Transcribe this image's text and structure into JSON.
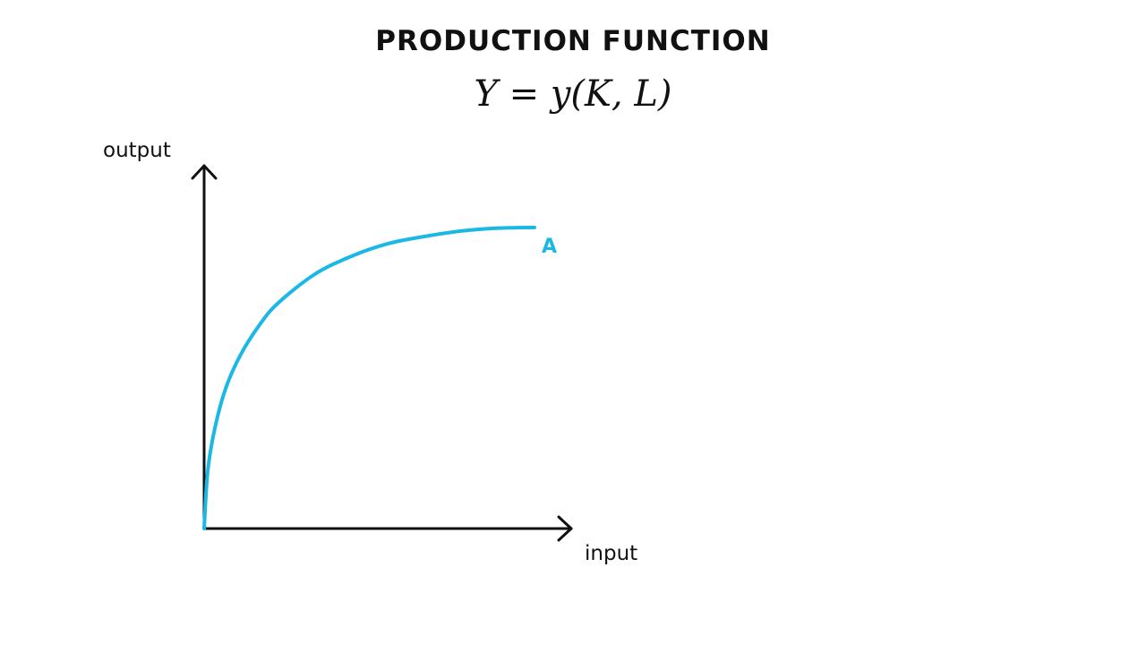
{
  "header": {
    "title": "PRODUCTION FUNCTION",
    "equation": "Y = y(K, L)"
  },
  "colors": {
    "axis": "#111111",
    "curve": "#1bb8e6",
    "background": "#ffffff"
  },
  "chart_data": {
    "type": "line",
    "xlabel": "input",
    "ylabel": "output",
    "xlim": [
      0,
      10
    ],
    "ylim": [
      0,
      10
    ],
    "grid": false,
    "ticks": false,
    "series": [
      {
        "name": "A",
        "x": [
          0,
          0.1,
          0.3,
          0.6,
          1,
          1.5,
          2,
          3,
          4,
          5,
          6,
          7,
          8,
          9
        ],
        "y": [
          0,
          1.6,
          2.8,
          3.9,
          4.8,
          5.6,
          6.2,
          7.0,
          7.5,
          7.85,
          8.05,
          8.2,
          8.28,
          8.3
        ]
      }
    ]
  }
}
